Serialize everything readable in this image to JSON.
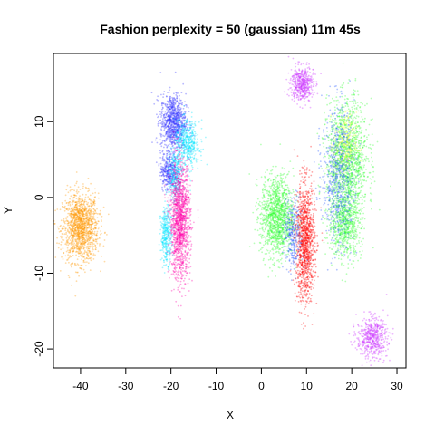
{
  "chart_data": {
    "type": "scatter",
    "title": "Fashion perplexity = 50 (gaussian) 11m 45s",
    "xlabel": "X",
    "ylabel": "Y",
    "xlim": [
      -46,
      32
    ],
    "ylim": [
      -22.5,
      19
    ],
    "xticks": [
      -40,
      -30,
      -20,
      -10,
      0,
      10,
      20,
      30
    ],
    "yticks": [
      -20,
      -10,
      0,
      10
    ],
    "grid": false,
    "legend": "none",
    "clusters": [
      {
        "color": "#ff9900",
        "blobs": [
          [
            -40,
            -4,
            2.8,
            3.2,
            1400
          ]
        ]
      },
      {
        "color": "#3333ff",
        "blobs": [
          [
            -19.5,
            10,
            2.0,
            2.6,
            900
          ],
          [
            -20.5,
            3.5,
            1.3,
            1.8,
            350
          ]
        ]
      },
      {
        "color": "#00e5ff",
        "blobs": [
          [
            -16.5,
            7,
            2.0,
            2.2,
            500
          ],
          [
            -19,
            2.5,
            1.1,
            2.5,
            300
          ],
          [
            -21,
            -5,
            0.9,
            2.6,
            350
          ]
        ]
      },
      {
        "color": "#ff00aa",
        "blobs": [
          [
            -18,
            -3,
            1.6,
            5.5,
            1400
          ]
        ]
      },
      {
        "color": "#cc33ff",
        "blobs": [
          [
            9,
            15,
            1.8,
            1.6,
            500
          ],
          [
            24.5,
            -18.5,
            2.4,
            1.9,
            550
          ]
        ]
      },
      {
        "color": "#33ff33",
        "blobs": [
          [
            3.5,
            -2.5,
            2.6,
            3.8,
            1300
          ],
          [
            19,
            5,
            3.2,
            5.5,
            1500
          ],
          [
            18.5,
            -3.5,
            2.6,
            3.2,
            700
          ]
        ]
      },
      {
        "color": "#ff0000",
        "blobs": [
          [
            9.7,
            -6,
            1.5,
            5.5,
            1200
          ]
        ]
      },
      {
        "color": "#2255ff",
        "blobs": [
          [
            17,
            3,
            2.5,
            6.5,
            700
          ],
          [
            7,
            -5,
            1.5,
            3.5,
            300
          ]
        ]
      },
      {
        "color": "#ffff33",
        "blobs": [
          [
            18.5,
            7,
            1.8,
            3.0,
            200
          ]
        ]
      }
    ]
  }
}
